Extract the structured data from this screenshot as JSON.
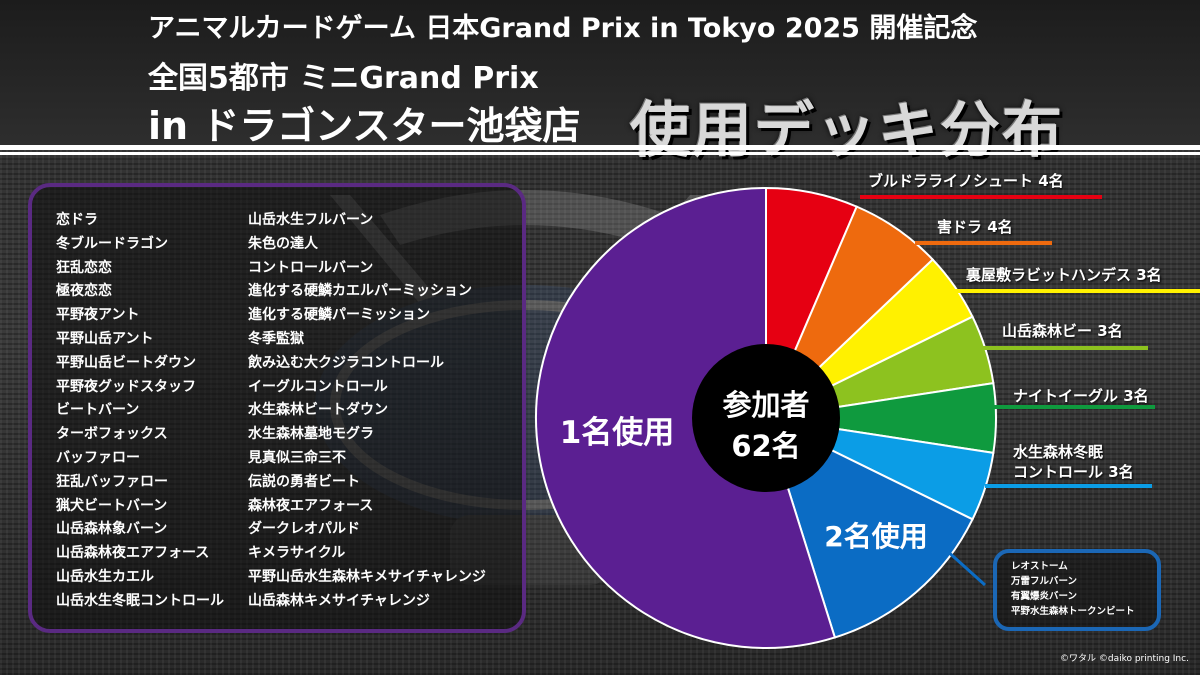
{
  "header": {
    "line1": "アニマルカードゲーム 日本Grand Prix in Tokyo 2025 開催記念",
    "line2": "全国5都市 ミニGrand Prix",
    "line3": "in ドラゴンスター池袋店",
    "big": "使用デッキ分布"
  },
  "colors": {
    "red": "#e60012",
    "orange": "#ee6a0e",
    "yellow": "#fff100",
    "yellowgreen": "#8dc21f",
    "green": "#0f9a3e",
    "lightblue": "#0b9de6",
    "blue": "#0b6cc4",
    "purple": "#5b1f92"
  },
  "chart_data": {
    "type": "pie",
    "center_label": "参加者",
    "center_value": "62名",
    "slices": [
      {
        "label": "ブルドラライノシュート",
        "count": "4名",
        "value": 4,
        "color": "#e60012"
      },
      {
        "label": "害ドラ",
        "count": "4名",
        "value": 4,
        "color": "#ee6a0e"
      },
      {
        "label": "裏屋敷ラビットハンデス",
        "count": "3名",
        "value": 3,
        "color": "#fff100"
      },
      {
        "label": "山岳森林ビー",
        "count": "3名",
        "value": 3,
        "color": "#8dc21f"
      },
      {
        "label": "ナイトイーグル",
        "count": "3名",
        "value": 3,
        "color": "#0f9a3e"
      },
      {
        "label": "水生森林冬眠コントロール",
        "line1": "水生森林冬眠",
        "line2": "コントロール",
        "count": "3名",
        "value": 3,
        "color": "#0b9de6"
      },
      {
        "label": "2名使用",
        "value": 8,
        "color": "#0b6cc4"
      },
      {
        "label": "1名使用",
        "value": 34,
        "color": "#5b1f92"
      }
    ]
  },
  "one_use_list": {
    "col1": [
      "恋ドラ",
      "冬ブルードラゴン",
      "狂乱恋恋",
      "極夜恋恋",
      "平野夜アント",
      "平野山岳アント",
      "平野山岳ビートダウン",
      "平野夜グッドスタッフ",
      "ビートバーン",
      "ターボフォックス",
      "バッファロー",
      "狂乱バッファロー",
      "猟犬ビートバーン",
      "山岳森林象バーン",
      "山岳森林夜エアフォース",
      "山岳水生カエル",
      "山岳水生冬眠コントロール"
    ],
    "col2": [
      "山岳水生フルバーン",
      "朱色の達人",
      "コントロールバーン",
      "進化する硬鱗カエルパーミッション",
      "進化する硬鱗パーミッション",
      "冬季監獄",
      "飲み込む大クジラコントロール",
      "イーグルコントロール",
      "水生森林ビートダウン",
      "水生森林墓地モグラ",
      "見真似三命三不",
      "伝説の勇者ビート",
      "森林夜エアフォース",
      "ダークレオパルド",
      "キメラサイクル",
      "平野山岳水生森林キメサイチャレンジ",
      "山岳森林キメサイチャレンジ"
    ]
  },
  "two_use_list": [
    "レオストーム",
    "万雷フルバーン",
    "有翼爆炎バーン",
    "平野水生森林トークンビート"
  ],
  "copyright": "©ワタル ©daiko printing Inc."
}
